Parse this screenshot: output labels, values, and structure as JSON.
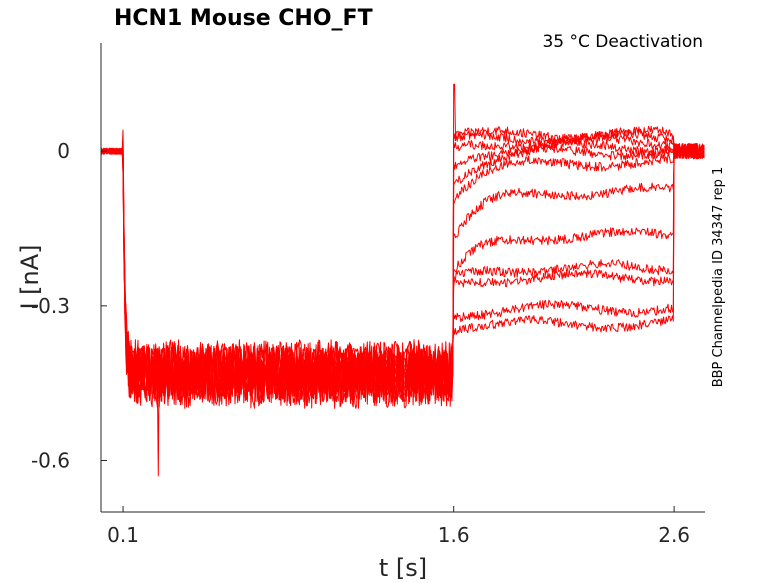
{
  "chart_data": {
    "type": "line",
    "title": "HCN1  Mouse  CHO_FT",
    "annotation": "35 °C  Deactivation",
    "side_label": "BBP Channelpedia ID 34347 rep 1",
    "xlabel": "t [s]",
    "ylabel": "I [nA]",
    "xlim": [
      0.0,
      2.74
    ],
    "ylim": [
      -0.7,
      0.21
    ],
    "x_ticks": [
      0.1,
      1.6,
      2.6
    ],
    "x_tick_labels": [
      "0.1",
      "1.6",
      "2.6"
    ],
    "y_ticks": [
      0,
      -0.3,
      -0.6
    ],
    "y_tick_labels": [
      "0",
      "-0.3",
      "-0.6"
    ],
    "grid": false,
    "line_color": "#ff0000",
    "protocol": {
      "holding_end": 0.1,
      "step_end": 1.6,
      "tail_end": 2.6,
      "holding_current": 0.0,
      "prepulse_current": -0.43,
      "tail_onset_spike": 0.13,
      "tail_min_spike": -0.63
    },
    "series": [
      {
        "tail_steady": 0.033,
        "tail_start": 0.03
      },
      {
        "tail_steady": 0.026,
        "tail_start": 0.02
      },
      {
        "tail_steady": 0.018,
        "tail_start": 0.0
      },
      {
        "tail_steady": 0.008,
        "tail_start": -0.03
      },
      {
        "tail_steady": -0.002,
        "tail_start": -0.06
      },
      {
        "tail_steady": -0.022,
        "tail_start": -0.09
      },
      {
        "tail_steady": -0.078,
        "tail_start": -0.17
      },
      {
        "tail_steady": -0.163,
        "tail_start": -0.24
      },
      {
        "tail_steady": -0.226,
        "tail_start": -0.25
      },
      {
        "tail_steady": -0.245,
        "tail_start": -0.26
      },
      {
        "tail_steady": -0.305,
        "tail_start": -0.32
      },
      {
        "tail_steady": -0.335,
        "tail_start": -0.34
      }
    ]
  }
}
